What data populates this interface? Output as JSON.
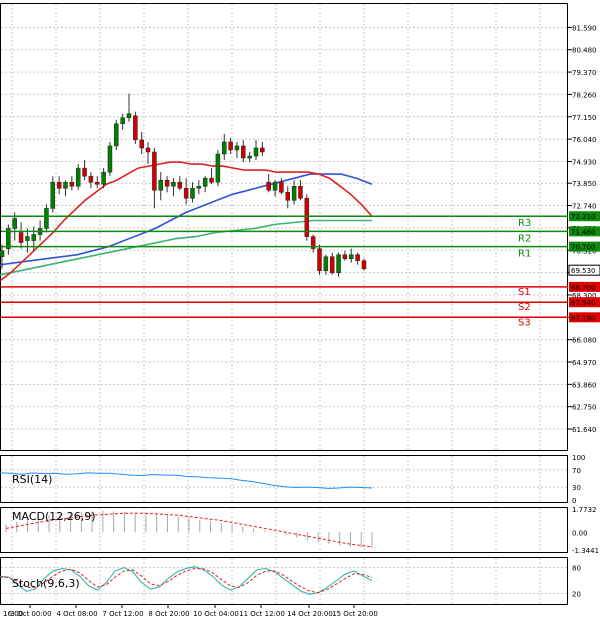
{
  "chart_data": {
    "type": "candlestick",
    "main": {
      "ylim": [
        60.6,
        82.8
      ],
      "ticks": [
        "81.590",
        "80.480",
        "79.370",
        "78.260",
        "77.150",
        "76.040",
        "74.930",
        "73.850",
        "72.740",
        "71.630",
        "70.520",
        "69.410",
        "68.300",
        "67.190",
        "66.080",
        "64.970",
        "63.860",
        "62.750",
        "61.640"
      ],
      "levels": [
        {
          "name": "R3",
          "value": 72.21,
          "label": "72.210",
          "color": "#0e8a0e"
        },
        {
          "name": "R2",
          "value": 71.46,
          "label": "71.460",
          "color": "#0e8a0e"
        },
        {
          "name": "R1",
          "value": 70.7,
          "label": "70.700",
          "color": "#0e8a0e"
        },
        {
          "name": "S1",
          "value": 68.7,
          "label": "68.700",
          "color": "#e00000"
        },
        {
          "name": "S2",
          "value": 67.94,
          "label": "67.940",
          "color": "#e00000"
        },
        {
          "name": "S3",
          "value": 67.19,
          "label": "67.190",
          "color": "#e00000"
        }
      ],
      "current_price": {
        "value": 69.53,
        "label": "69.530"
      },
      "candles": [
        {
          "o": 70.2,
          "h": 70.8,
          "l": 69.6,
          "c": 70.5
        },
        {
          "o": 70.6,
          "h": 71.8,
          "l": 70.3,
          "c": 71.6
        },
        {
          "o": 71.6,
          "h": 72.4,
          "l": 71.0,
          "c": 72.1
        },
        {
          "o": 71.4,
          "h": 71.9,
          "l": 70.6,
          "c": 70.9
        },
        {
          "o": 71.0,
          "h": 71.6,
          "l": 70.4,
          "c": 71.2
        },
        {
          "o": 71.0,
          "h": 71.7,
          "l": 70.5,
          "c": 71.3
        },
        {
          "o": 71.3,
          "h": 72.0,
          "l": 71.0,
          "c": 71.6
        },
        {
          "o": 71.6,
          "h": 72.8,
          "l": 71.4,
          "c": 72.6
        },
        {
          "o": 72.6,
          "h": 74.2,
          "l": 72.4,
          "c": 73.9
        },
        {
          "o": 73.9,
          "h": 74.2,
          "l": 73.3,
          "c": 73.6
        },
        {
          "o": 73.6,
          "h": 74.0,
          "l": 73.2,
          "c": 73.9
        },
        {
          "o": 73.9,
          "h": 74.2,
          "l": 73.5,
          "c": 73.7
        },
        {
          "o": 73.7,
          "h": 74.8,
          "l": 73.5,
          "c": 74.6
        },
        {
          "o": 74.6,
          "h": 75.0,
          "l": 74.0,
          "c": 74.2
        },
        {
          "o": 74.2,
          "h": 74.4,
          "l": 73.6,
          "c": 73.9
        },
        {
          "o": 73.9,
          "h": 74.2,
          "l": 73.6,
          "c": 73.8
        },
        {
          "o": 73.8,
          "h": 74.6,
          "l": 73.6,
          "c": 74.4
        },
        {
          "o": 74.4,
          "h": 75.9,
          "l": 74.2,
          "c": 75.7
        },
        {
          "o": 75.7,
          "h": 77.0,
          "l": 75.5,
          "c": 76.8
        },
        {
          "o": 76.8,
          "h": 77.3,
          "l": 76.5,
          "c": 77.1
        },
        {
          "o": 77.1,
          "h": 78.3,
          "l": 76.9,
          "c": 77.3
        },
        {
          "o": 77.2,
          "h": 77.4,
          "l": 75.8,
          "c": 76.0
        },
        {
          "o": 76.0,
          "h": 76.4,
          "l": 75.3,
          "c": 75.6
        },
        {
          "o": 75.6,
          "h": 75.9,
          "l": 74.8,
          "c": 75.4
        },
        {
          "o": 75.4,
          "h": 75.6,
          "l": 72.6,
          "c": 73.5
        },
        {
          "o": 73.5,
          "h": 74.4,
          "l": 73.0,
          "c": 74.0
        },
        {
          "o": 74.0,
          "h": 74.2,
          "l": 73.4,
          "c": 73.7
        },
        {
          "o": 73.7,
          "h": 74.1,
          "l": 73.2,
          "c": 73.9
        },
        {
          "o": 73.9,
          "h": 74.2,
          "l": 73.5,
          "c": 73.6
        },
        {
          "o": 73.6,
          "h": 74.1,
          "l": 72.8,
          "c": 73.1
        },
        {
          "o": 73.1,
          "h": 73.9,
          "l": 72.9,
          "c": 73.6
        },
        {
          "o": 73.6,
          "h": 74.0,
          "l": 73.3,
          "c": 73.7
        },
        {
          "o": 73.7,
          "h": 74.2,
          "l": 73.4,
          "c": 74.1
        },
        {
          "o": 74.1,
          "h": 74.6,
          "l": 73.8,
          "c": 73.9
        },
        {
          "o": 73.9,
          "h": 75.5,
          "l": 73.7,
          "c": 75.3
        },
        {
          "o": 75.3,
          "h": 76.3,
          "l": 75.0,
          "c": 75.9
        },
        {
          "o": 75.9,
          "h": 76.1,
          "l": 75.3,
          "c": 75.5
        },
        {
          "o": 75.5,
          "h": 75.9,
          "l": 75.1,
          "c": 75.7
        },
        {
          "o": 75.7,
          "h": 76.0,
          "l": 74.9,
          "c": 75.1
        },
        {
          "o": 75.1,
          "h": 75.4,
          "l": 74.9,
          "c": 75.2
        },
        {
          "o": 75.2,
          "h": 76.0,
          "l": 75.0,
          "c": 75.6
        },
        {
          "o": 75.6,
          "h": 75.9,
          "l": 75.2,
          "c": 75.4
        },
        {
          "o": 73.9,
          "h": 74.3,
          "l": 73.4,
          "c": 73.5
        },
        {
          "o": 73.5,
          "h": 74.0,
          "l": 73.2,
          "c": 73.9
        },
        {
          "o": 73.9,
          "h": 74.1,
          "l": 73.3,
          "c": 73.4
        },
        {
          "o": 73.4,
          "h": 73.7,
          "l": 72.6,
          "c": 73.0
        },
        {
          "o": 73.0,
          "h": 74.0,
          "l": 72.8,
          "c": 73.7
        },
        {
          "o": 73.7,
          "h": 74.0,
          "l": 73.0,
          "c": 73.1
        },
        {
          "o": 73.1,
          "h": 73.3,
          "l": 71.0,
          "c": 71.2
        },
        {
          "o": 71.2,
          "h": 71.3,
          "l": 70.4,
          "c": 70.6
        },
        {
          "o": 70.6,
          "h": 70.8,
          "l": 69.3,
          "c": 69.5
        },
        {
          "o": 69.5,
          "h": 70.3,
          "l": 69.3,
          "c": 70.2
        },
        {
          "o": 70.2,
          "h": 70.4,
          "l": 69.3,
          "c": 69.4
        },
        {
          "o": 69.4,
          "h": 70.4,
          "l": 69.2,
          "c": 70.3
        },
        {
          "o": 70.3,
          "h": 70.5,
          "l": 70.0,
          "c": 70.1
        },
        {
          "o": 70.1,
          "h": 70.6,
          "l": 69.9,
          "c": 70.3
        },
        {
          "o": 70.3,
          "h": 70.4,
          "l": 69.8,
          "c": 70.0
        },
        {
          "o": 70.0,
          "h": 70.1,
          "l": 69.5,
          "c": 69.6
        }
      ],
      "ma_fast": [
        69.0,
        69.4,
        69.9,
        70.4,
        70.9,
        71.4,
        72.0,
        72.5,
        73.0,
        73.4,
        73.8,
        74.0,
        74.3,
        74.6,
        74.7,
        74.8,
        74.9,
        74.9,
        74.8,
        74.8,
        74.7,
        74.7,
        74.6,
        74.5,
        74.5,
        74.5,
        74.4,
        74.4,
        74.4,
        74.4,
        74.3,
        74.1,
        73.7,
        73.3,
        72.8,
        72.2
      ],
      "ma_mid": [
        69.8,
        69.9,
        70.0,
        70.1,
        70.2,
        70.3,
        70.5,
        70.7,
        71.0,
        71.3,
        71.6,
        72.0,
        72.4,
        72.7,
        73.0,
        73.3,
        73.5,
        73.7,
        73.9,
        74.1,
        74.3,
        74.3,
        74.3,
        74.1,
        73.8
      ],
      "ma_slow": [
        69.3,
        69.5,
        69.7,
        69.9,
        70.1,
        70.3,
        70.5,
        70.7,
        70.9,
        71.1,
        71.2,
        71.4,
        71.5,
        71.6,
        71.8,
        71.9,
        72.0,
        72.0,
        72.0,
        72.0
      ]
    },
    "indicators": [
      {
        "name": "RSI(14)",
        "ticks": [
          "100",
          "70",
          "30",
          "0"
        ],
        "values": [
          63,
          62,
          60,
          63,
          61,
          62,
          60,
          61,
          63,
          62,
          62,
          60,
          58,
          57,
          59,
          58,
          58,
          55,
          54,
          52,
          51,
          50,
          46,
          43,
          39,
          34,
          31,
          29,
          30,
          29,
          27,
          28,
          30,
          29,
          28
        ]
      },
      {
        "name": "MACD(12,26,9)",
        "ticks": [
          "1.7732",
          "0.00",
          "-1.3441"
        ],
        "ylim": [
          -1.3441,
          1.7732
        ],
        "histogram": [
          0.6,
          0.8,
          1.0,
          1.15,
          1.3,
          1.4,
          1.5,
          1.55,
          1.6,
          1.65,
          1.6,
          1.55,
          1.5,
          1.45,
          1.4,
          1.3,
          1.2,
          1.1,
          0.95,
          0.85,
          0.7,
          0.6,
          0.45,
          0.3,
          0.15,
          0.0,
          -0.2,
          -0.4,
          -0.6,
          -0.75,
          -0.9,
          -1.0,
          -1.1,
          -1.15,
          -1.2
        ],
        "signal": [
          0.3,
          0.45,
          0.6,
          0.75,
          0.9,
          1.0,
          1.1,
          1.2,
          1.3,
          1.35,
          1.4,
          1.45,
          1.45,
          1.45,
          1.4,
          1.35,
          1.3,
          1.2,
          1.1,
          1.0,
          0.9,
          0.75,
          0.6,
          0.45,
          0.3,
          0.15,
          0.0,
          -0.15,
          -0.3,
          -0.45,
          -0.6,
          -0.75,
          -0.9,
          -1.0,
          -1.1
        ]
      },
      {
        "name": "Stoch(9,6,3)",
        "ticks": [
          "80",
          "20"
        ],
        "k": [
          60,
          58,
          40,
          25,
          30,
          55,
          72,
          78,
          75,
          60,
          38,
          28,
          45,
          72,
          80,
          70,
          45,
          30,
          35,
          55,
          70,
          78,
          82,
          75,
          60,
          40,
          28,
          35,
          55,
          75,
          78,
          70,
          55,
          40,
          25,
          18,
          22,
          35,
          50,
          65,
          72,
          60,
          50
        ],
        "d": [
          58,
          57,
          48,
          35,
          33,
          45,
          60,
          72,
          76,
          68,
          50,
          35,
          40,
          58,
          72,
          75,
          60,
          42,
          38,
          48,
          62,
          72,
          78,
          77,
          68,
          52,
          38,
          34,
          45,
          62,
          72,
          72,
          62,
          48,
          35,
          25,
          22,
          30,
          42,
          55,
          66,
          64,
          57
        ]
      }
    ],
    "x_ticks": [
      "3 Oct 00:00",
      "4 Oct 08:00",
      "7 Oct 12:00",
      "8 Oct 20:00",
      "10 Oct 04:00",
      "11 Oct 12:00",
      "14 Oct 20:00",
      "15 Oct 20:00"
    ],
    "x_tick_partial": "16:00"
  }
}
